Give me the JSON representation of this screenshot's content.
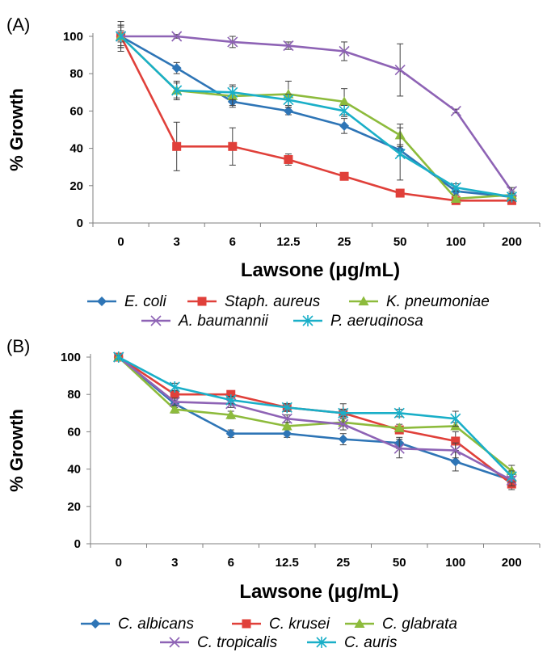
{
  "chart_data": [
    {
      "panel_label": "(A)",
      "type": "line",
      "x": [
        "0",
        "3",
        "6",
        "12.5",
        "25",
        "50",
        "100",
        "200"
      ],
      "xlabel": "Lawsone (μg/mL)",
      "ylabel": "% Growth",
      "ylim": [
        0,
        100
      ],
      "yticks": [
        0,
        20,
        40,
        60,
        80,
        100
      ],
      "legend_position": "bottom",
      "error_bars": true,
      "series": [
        {
          "name": "E. coli",
          "color": "#2e75b6",
          "marker": "diamond",
          "values": [
            100,
            83,
            65,
            60,
            52,
            39,
            17,
            14
          ],
          "errors": [
            8,
            3,
            3,
            2,
            4,
            3,
            2,
            2
          ]
        },
        {
          "name": "Staph. aureus",
          "color": "#e0403a",
          "marker": "square",
          "values": [
            100,
            41,
            41,
            34,
            25,
            16,
            12,
            12
          ],
          "errors": [
            5,
            13,
            10,
            3,
            1,
            1,
            1,
            1
          ]
        },
        {
          "name": "K. pneumoniae",
          "color": "#8dbb3c",
          "marker": "triangle",
          "values": [
            100,
            71,
            68,
            69,
            65,
            47,
            13,
            15
          ],
          "errors": [
            6,
            5,
            5,
            7,
            7,
            6,
            2,
            2
          ]
        },
        {
          "name": "A. baumannii",
          "color": "#8e63b5",
          "marker": "x",
          "values": [
            100,
            100,
            97,
            95,
            92,
            82,
            60,
            17
          ],
          "errors": [
            3,
            1,
            3,
            2,
            5,
            14,
            1,
            2
          ]
        },
        {
          "name": "P. aeruginosa",
          "color": "#1aafc8",
          "marker": "star",
          "values": [
            100,
            71,
            70,
            66,
            60,
            37,
            19,
            14
          ],
          "errors": [
            6,
            4,
            4,
            3,
            3,
            14,
            2,
            2
          ]
        }
      ]
    },
    {
      "panel_label": "(B)",
      "type": "line",
      "x": [
        "0",
        "3",
        "6",
        "12.5",
        "25",
        "50",
        "100",
        "200"
      ],
      "xlabel": "Lawsone (μg/mL)",
      "ylabel": "% Growth",
      "ylim": [
        0,
        100
      ],
      "yticks": [
        0,
        20,
        40,
        60,
        80,
        100
      ],
      "legend_position": "bottom",
      "error_bars": true,
      "series": [
        {
          "name": "C. albicans",
          "color": "#2e75b6",
          "marker": "diamond",
          "values": [
            100,
            75,
            59,
            59,
            56,
            54,
            44,
            34
          ],
          "errors": [
            1,
            2,
            2,
            2,
            3,
            3,
            5,
            3
          ]
        },
        {
          "name": "C. krusei",
          "color": "#e0403a",
          "marker": "square",
          "values": [
            100,
            80,
            80,
            73,
            70,
            61,
            55,
            32
          ],
          "errors": [
            1,
            2,
            2,
            2,
            5,
            2,
            5,
            3
          ]
        },
        {
          "name": "C. glabrata",
          "color": "#8dbb3c",
          "marker": "triangle",
          "values": [
            100,
            72,
            69,
            63,
            65,
            62,
            63,
            39
          ],
          "errors": [
            1,
            2,
            2,
            2,
            2,
            2,
            2,
            3
          ]
        },
        {
          "name": "C. tropicalis",
          "color": "#8e63b5",
          "marker": "x",
          "values": [
            100,
            76,
            75,
            67,
            64,
            51,
            50,
            34
          ],
          "errors": [
            1,
            2,
            2,
            2,
            3,
            5,
            4,
            3
          ]
        },
        {
          "name": "C. auris",
          "color": "#1aafc8",
          "marker": "star",
          "values": [
            100,
            84,
            77,
            73,
            70,
            70,
            67,
            36
          ],
          "errors": [
            1,
            2,
            2,
            2,
            2,
            2,
            4,
            3
          ]
        }
      ]
    }
  ]
}
